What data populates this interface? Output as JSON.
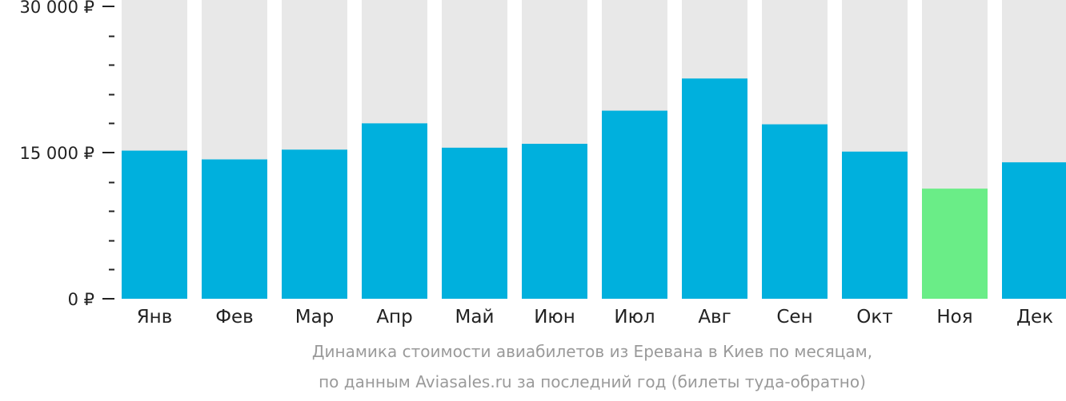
{
  "chart_data": {
    "type": "bar",
    "categories": [
      "Янв",
      "Фев",
      "Мар",
      "Апр",
      "Май",
      "Июн",
      "Июл",
      "Авг",
      "Сен",
      "Окт",
      "Ноя",
      "Дек"
    ],
    "values": [
      15200,
      14300,
      15300,
      18000,
      15500,
      15900,
      19300,
      22600,
      17900,
      15100,
      11300,
      14000
    ],
    "highlight_index": 10,
    "ylim": [
      0,
      30000
    ],
    "yticks": [
      0,
      15000,
      30000
    ],
    "ytick_labels": [
      "0 ₽",
      "15 000 ₽",
      "30 000 ₽"
    ],
    "minor_tick_step": 3000,
    "grid": false,
    "colors": {
      "bar": "#00b0dd",
      "highlight": "#6aed87",
      "track": "#e8e8e8",
      "axis": "#222222",
      "caption": "#9a9a9a"
    }
  },
  "caption": {
    "line1": "Динамика стоимости авиабилетов из Еревана в Киев по месяцам,",
    "line2": "по данным Aviasales.ru за последний год (билеты туда-обратно)"
  }
}
